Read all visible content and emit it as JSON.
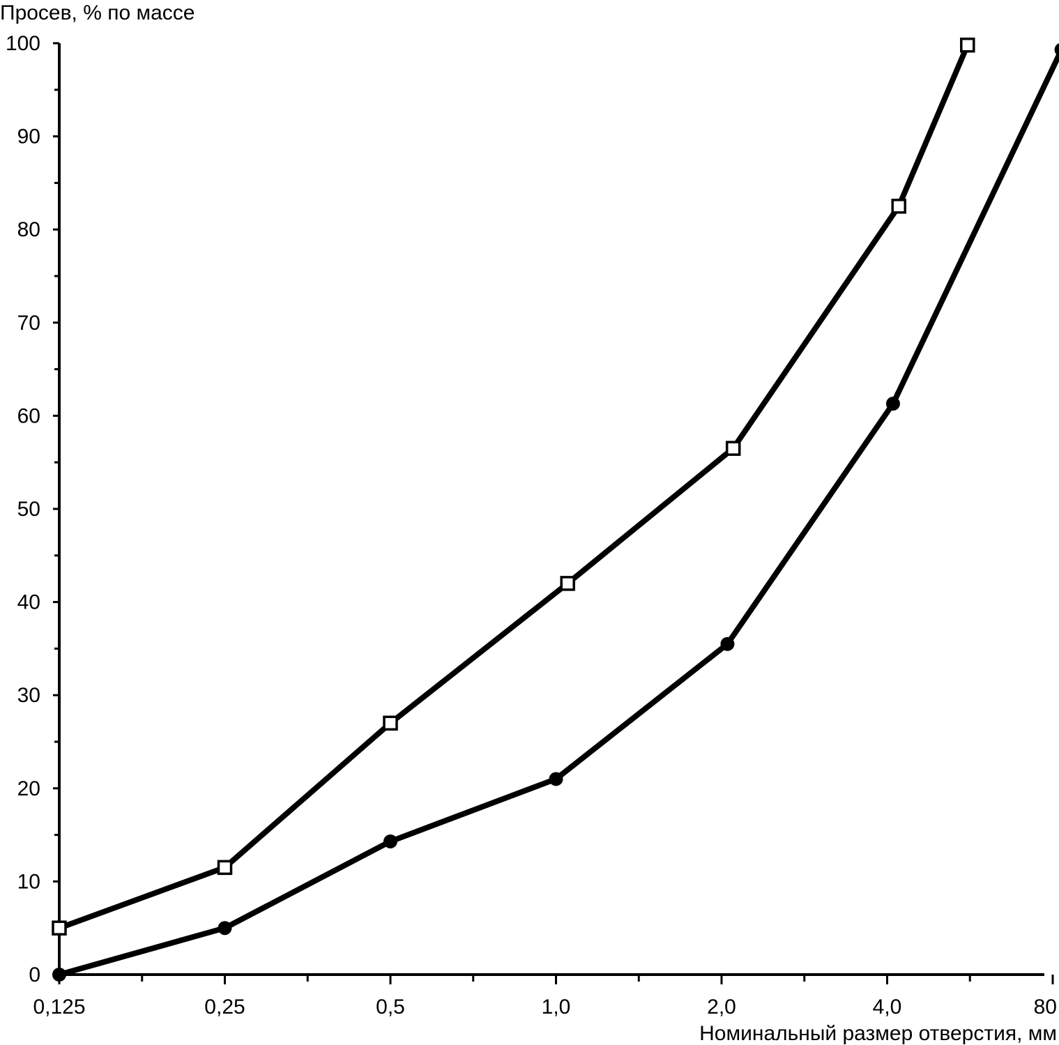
{
  "chart_data": {
    "type": "line",
    "ylabel": "Просев, % по массе",
    "xlabel": "Номинальный размер отверстия, мм",
    "x_ticks": [
      "0,125",
      "0,25",
      "0,5",
      "1,0",
      "2,0",
      "4,0",
      "80"
    ],
    "y_ticks": [
      "0",
      "10",
      "20",
      "30",
      "40",
      "50",
      "60",
      "70",
      "80",
      "90",
      "100"
    ],
    "ylim": [
      0,
      100
    ],
    "x_scale": "log2 (octave steps)",
    "grid": false,
    "series": [
      {
        "marker": "open-square",
        "points": [
          {
            "x": 0.125,
            "y": 5
          },
          {
            "x": 0.25,
            "y": 11.5
          },
          {
            "x": 0.5,
            "y": 27
          },
          {
            "x": 1.05,
            "y": 42
          },
          {
            "x": 2.1,
            "y": 56.5
          },
          {
            "x": 4.2,
            "y": 82.5
          },
          {
            "x": 5.6,
            "y": 99.8
          }
        ]
      },
      {
        "marker": "filled-circle",
        "points": [
          {
            "x": 0.125,
            "y": 0
          },
          {
            "x": 0.25,
            "y": 5
          },
          {
            "x": 0.5,
            "y": 14.3
          },
          {
            "x": 1.0,
            "y": 21
          },
          {
            "x": 2.05,
            "y": 35.5
          },
          {
            "x": 4.1,
            "y": 61.3
          },
          {
            "x": 8.3,
            "y": 99.3
          }
        ]
      }
    ]
  }
}
